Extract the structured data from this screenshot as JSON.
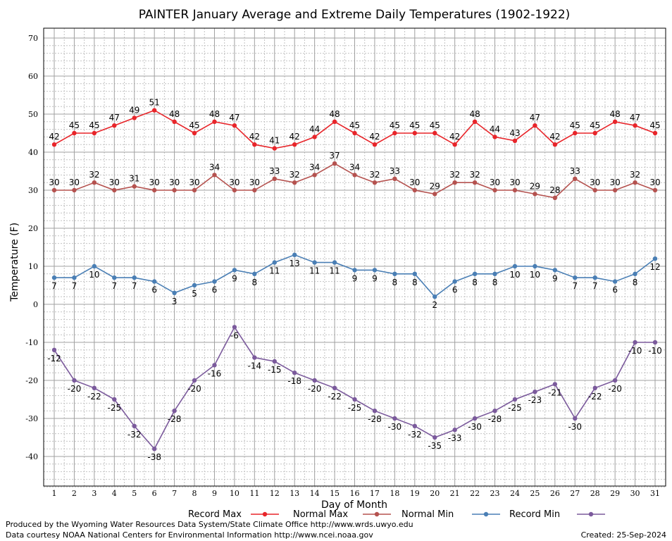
{
  "chart_data": {
    "type": "line",
    "title": "PAINTER January Average and Extreme Daily Temperatures (1902-1922)",
    "xlabel": "Day of Month",
    "ylabel": "Temperature (F)",
    "xlim": [
      1,
      31
    ],
    "ylim": [
      -48,
      70
    ],
    "yticks": [
      70,
      60,
      50,
      40,
      30,
      20,
      10,
      0,
      -10,
      -20,
      -30,
      -40
    ],
    "categories": [
      "1",
      "2",
      "3",
      "4",
      "5",
      "6",
      "7",
      "8",
      "9",
      "10",
      "11",
      "12",
      "13",
      "14",
      "15",
      "16",
      "17",
      "18",
      "19",
      "20",
      "21",
      "22",
      "23",
      "24",
      "25",
      "26",
      "27",
      "28",
      "29",
      "30",
      "31"
    ],
    "grid": true,
    "legend_position": "bottom",
    "series": [
      {
        "name": "Record Max",
        "color": "#e8252a",
        "label_pos": "above",
        "values": [
          42,
          45,
          45,
          47,
          49,
          51,
          48,
          45,
          48,
          47,
          42,
          41,
          42,
          44,
          48,
          45,
          42,
          45,
          45,
          45,
          42,
          48,
          44,
          43,
          47,
          42,
          45,
          45,
          48,
          47,
          45
        ]
      },
      {
        "name": "Normal Max",
        "color": "#b5524f",
        "label_pos": "above",
        "values": [
          30,
          30,
          32,
          30,
          31,
          30,
          30,
          30,
          34,
          30,
          30,
          33,
          32,
          34,
          37,
          34,
          32,
          33,
          30,
          29,
          32,
          32,
          30,
          30,
          29,
          28,
          33,
          30,
          30,
          32,
          30
        ]
      },
      {
        "name": "Normal Min",
        "color": "#4a7fb5",
        "label_pos": "below",
        "values": [
          7,
          7,
          10,
          7,
          7,
          6,
          3,
          5,
          6,
          9,
          8,
          11,
          13,
          11,
          11,
          9,
          9,
          8,
          8,
          2,
          6,
          8,
          8,
          10,
          10,
          9,
          7,
          7,
          6,
          8,
          12
        ]
      },
      {
        "name": "Record Min",
        "color": "#7b5a9c",
        "label_pos": "below",
        "values": [
          -12,
          -20,
          -22,
          -25,
          -32,
          -38,
          -28,
          -20,
          -16,
          -6,
          -14,
          -15,
          -18,
          -20,
          -22,
          -25,
          -28,
          -30,
          -32,
          -35,
          -33,
          -30,
          -28,
          -25,
          -23,
          -21,
          -30,
          -22,
          -20,
          -10,
          -10
        ]
      }
    ]
  },
  "footer": {
    "produced_by": "Produced by the Wyoming Water Resources Data System/State Climate Office http://www.wrds.uwyo.edu",
    "courtesy": "Data courtesy NOAA National Centers for Environmental Information http://www.ncei.noaa.gov",
    "created": "Created: 25-Sep-2024"
  }
}
